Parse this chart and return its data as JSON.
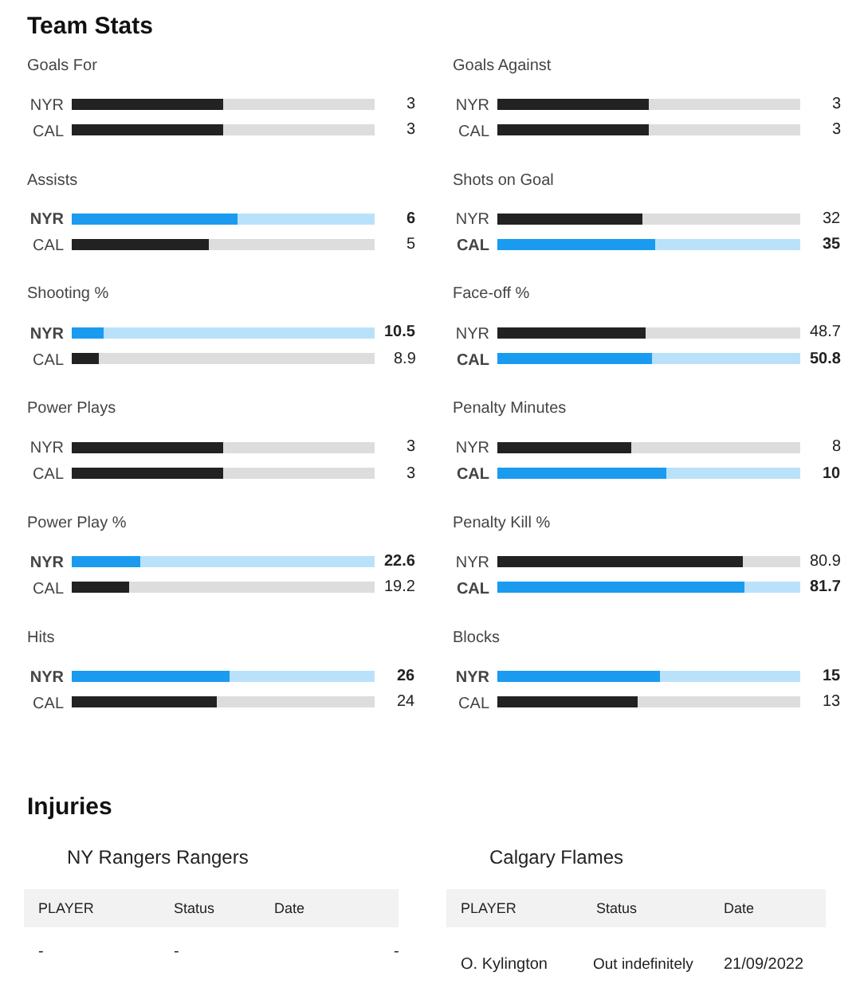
{
  "chart_data": [
    {
      "type": "other",
      "title": "Team Stats"
    },
    {
      "type": "bar",
      "orientation": "horizontal",
      "stacked": true,
      "title": "Goals For",
      "categories": [
        "NYR",
        "CAL"
      ],
      "tick_labels": "y",
      "series": [
        {
          "values": [
            3,
            3
          ],
          "colors": [
            "#222222",
            "#222222"
          ],
          "value_labels": [
            "3",
            "3"
          ]
        },
        {
          "values": [
            3,
            3
          ],
          "colors": [
            "#dddddd",
            "#dddddd"
          ]
        }
      ]
    },
    {
      "type": "bar",
      "orientation": "horizontal",
      "stacked": true,
      "title": "Goals Against",
      "categories": [
        "NYR",
        "CAL"
      ],
      "tick_labels": "y",
      "series": [
        {
          "values": [
            3,
            3
          ],
          "colors": [
            "#222222",
            "#222222"
          ],
          "value_labels": [
            "3",
            "3"
          ]
        },
        {
          "values": [
            3,
            3
          ],
          "colors": [
            "#dddddd",
            "#dddddd"
          ]
        }
      ]
    },
    {
      "type": "bar",
      "orientation": "horizontal",
      "stacked": true,
      "title": "Assists",
      "categories": [
        "NYR",
        "CAL"
      ],
      "tick_labels": "y",
      "series": [
        {
          "values": [
            6,
            5
          ],
          "colors": [
            "#1a9bf0",
            "#222222"
          ],
          "value_labels": [
            "6",
            "5"
          ]
        },
        {
          "values": [
            5,
            6
          ],
          "colors": [
            "#bae1fa",
            "#dddddd"
          ]
        }
      ]
    },
    {
      "type": "bar",
      "orientation": "horizontal",
      "stacked": true,
      "title": "Shots on Goal",
      "categories": [
        "NYR",
        "CAL"
      ],
      "tick_labels": "y",
      "series": [
        {
          "values": [
            32,
            35
          ],
          "colors": [
            "#222222",
            "#1a9bf0"
          ],
          "value_labels": [
            "32",
            "35"
          ]
        },
        {
          "values": [
            35,
            32
          ],
          "colors": [
            "#dddddd",
            "#bae1fa"
          ]
        }
      ]
    },
    {
      "type": "bar",
      "orientation": "horizontal",
      "stacked": true,
      "title": "Shooting %",
      "categories": [
        "NYR",
        "CAL"
      ],
      "tick_labels": "y",
      "series": [
        {
          "values": [
            10.5,
            8.9
          ],
          "colors": [
            "#1a9bf0",
            "#222222"
          ],
          "value_labels": [
            "10.5",
            "8.9"
          ]
        },
        {
          "values": [
            89.5,
            91.1
          ],
          "colors": [
            "#bae1fa",
            "#dddddd"
          ]
        }
      ]
    },
    {
      "type": "bar",
      "orientation": "horizontal",
      "stacked": true,
      "title": "Face-off %",
      "categories": [
        "NYR",
        "CAL"
      ],
      "tick_labels": "y",
      "series": [
        {
          "values": [
            48.7,
            50.8
          ],
          "colors": [
            "#222222",
            "#1a9bf0"
          ],
          "value_labels": [
            "48.7",
            "50.8"
          ]
        },
        {
          "values": [
            51.3,
            49.2
          ],
          "colors": [
            "#dddddd",
            "#bae1fa"
          ]
        }
      ]
    },
    {
      "type": "bar",
      "orientation": "horizontal",
      "stacked": true,
      "title": "Power Plays",
      "categories": [
        "NYR",
        "CAL"
      ],
      "tick_labels": "y",
      "series": [
        {
          "values": [
            3,
            3
          ],
          "colors": [
            "#222222",
            "#222222"
          ],
          "value_labels": [
            "3",
            "3"
          ]
        },
        {
          "values": [
            3,
            3
          ],
          "colors": [
            "#dddddd",
            "#dddddd"
          ]
        }
      ]
    },
    {
      "type": "bar",
      "orientation": "horizontal",
      "stacked": true,
      "title": "Penalty Minutes",
      "categories": [
        "NYR",
        "CAL"
      ],
      "tick_labels": "y",
      "series": [
        {
          "values": [
            8,
            10
          ],
          "colors": [
            "#222222",
            "#1a9bf0"
          ],
          "value_labels": [
            "8",
            "10"
          ]
        },
        {
          "values": [
            10,
            8
          ],
          "colors": [
            "#dddddd",
            "#bae1fa"
          ]
        }
      ]
    },
    {
      "type": "bar",
      "orientation": "horizontal",
      "stacked": true,
      "title": "Power Play %",
      "categories": [
        "NYR",
        "CAL"
      ],
      "tick_labels": "y",
      "series": [
        {
          "values": [
            22.6,
            19.2
          ],
          "colors": [
            "#1a9bf0",
            "#222222"
          ],
          "value_labels": [
            "22.6",
            "19.2"
          ]
        },
        {
          "values": [
            77.4,
            80.8
          ],
          "colors": [
            "#bae1fa",
            "#dddddd"
          ]
        }
      ]
    },
    {
      "type": "bar",
      "orientation": "horizontal",
      "stacked": true,
      "title": "Penalty Kill %",
      "categories": [
        "NYR",
        "CAL"
      ],
      "tick_labels": "y",
      "series": [
        {
          "values": [
            80.9,
            81.7
          ],
          "colors": [
            "#222222",
            "#1a9bf0"
          ],
          "value_labels": [
            "80.9",
            "81.7"
          ]
        },
        {
          "values": [
            19.1,
            18.3
          ],
          "colors": [
            "#dddddd",
            "#bae1fa"
          ]
        }
      ]
    },
    {
      "type": "bar",
      "orientation": "horizontal",
      "stacked": true,
      "title": "Hits",
      "categories": [
        "NYR",
        "CAL"
      ],
      "tick_labels": "y",
      "series": [
        {
          "values": [
            26,
            24
          ],
          "colors": [
            "#1a9bf0",
            "#222222"
          ],
          "value_labels": [
            "26",
            "24"
          ]
        },
        {
          "values": [
            24,
            26
          ],
          "colors": [
            "#bae1fa",
            "#dddddd"
          ]
        }
      ]
    },
    {
      "type": "bar",
      "orientation": "horizontal",
      "stacked": true,
      "title": "Blocks",
      "categories": [
        "NYR",
        "CAL"
      ],
      "tick_labels": "y",
      "series": [
        {
          "values": [
            15,
            13
          ],
          "colors": [
            "#1a9bf0",
            "#222222"
          ],
          "value_labels": [
            "15",
            "13"
          ]
        },
        {
          "values": [
            13,
            15
          ],
          "colors": [
            "#bae1fa",
            "#dddddd"
          ]
        }
      ]
    },
    {
      "type": "other",
      "title": "Injuries",
      "annotations": [
        "NY Rangers Rangers",
        "PLAYER",
        "Status",
        "Date",
        "-",
        "-",
        "-",
        "Calgary Flames",
        "PLAYER",
        "Status",
        "Date",
        "O. Kylington",
        "Out indefinitely",
        "21/09/2022"
      ]
    }
  ]
}
